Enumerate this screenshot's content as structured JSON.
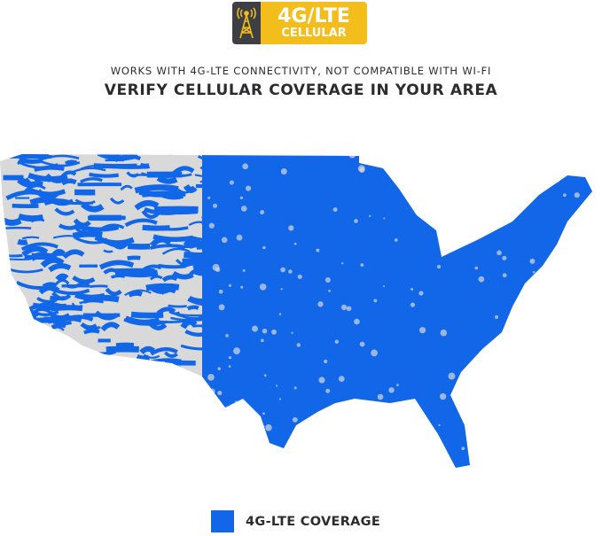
{
  "badge": {
    "line1": "4G/LTE",
    "line2": "CELLULAR",
    "icon": "cell-tower-icon",
    "bg": "#f3bd1c",
    "icon_bg": "#3d3f44"
  },
  "subtitle": "WORKS WITH 4G-LTE CONNECTIVITY, NOT COMPATIBLE WITH WI-FI",
  "headline": "VERIFY CELLULAR COVERAGE IN YOUR AREA",
  "map": {
    "region": "Contiguous United States",
    "coverage_color": "#1167e8",
    "no_coverage_color": "#d9d9d9"
  },
  "legend": {
    "label": "4G-LTE COVERAGE",
    "color": "#1167e8"
  }
}
